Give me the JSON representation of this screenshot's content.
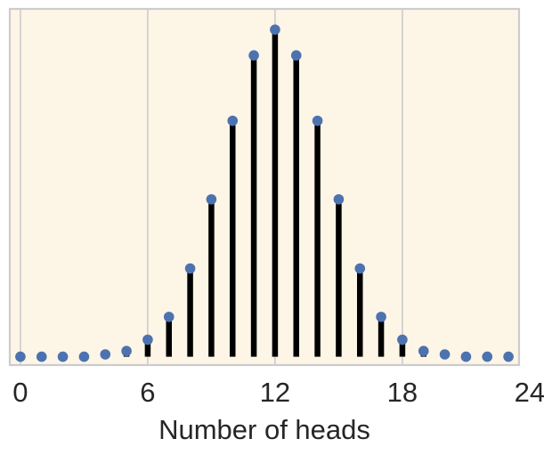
{
  "chart_data": {
    "type": "scatter",
    "title": "",
    "xlabel": "Number of heads",
    "ylabel": "",
    "xlim": [
      -0.5,
      23.5
    ],
    "ylim": [
      -0.004,
      0.166
    ],
    "xticks": [
      0,
      6,
      12,
      18,
      24
    ],
    "xtick_labels": [
      "0",
      "6",
      "12",
      "18",
      "24"
    ],
    "grid": "vertical-lines",
    "legend": "none",
    "series": [
      {
        "marker": "dot",
        "stems": true,
        "x": [
          0,
          1,
          2,
          3,
          4,
          5,
          6,
          7,
          8,
          9,
          10,
          11,
          12,
          13,
          14,
          15,
          16,
          17,
          18,
          19,
          20,
          21,
          22,
          23
        ],
        "y": [
          0.0,
          0.0,
          0.0,
          0.0,
          0.0011,
          0.0027,
          0.0081,
          0.019,
          0.0421,
          0.0751,
          0.1126,
          0.1438,
          0.1561,
          0.1438,
          0.1126,
          0.0751,
          0.0421,
          0.019,
          0.0081,
          0.0027,
          0.0011,
          0.0,
          0.0,
          0.0
        ]
      }
    ],
    "colors": {
      "plot_background": "#fdf5e6",
      "plot_border": "#cccccc",
      "grid": "#cccccc",
      "stem": "#000000",
      "marker": "#4c72b0",
      "text": "#262626"
    }
  }
}
